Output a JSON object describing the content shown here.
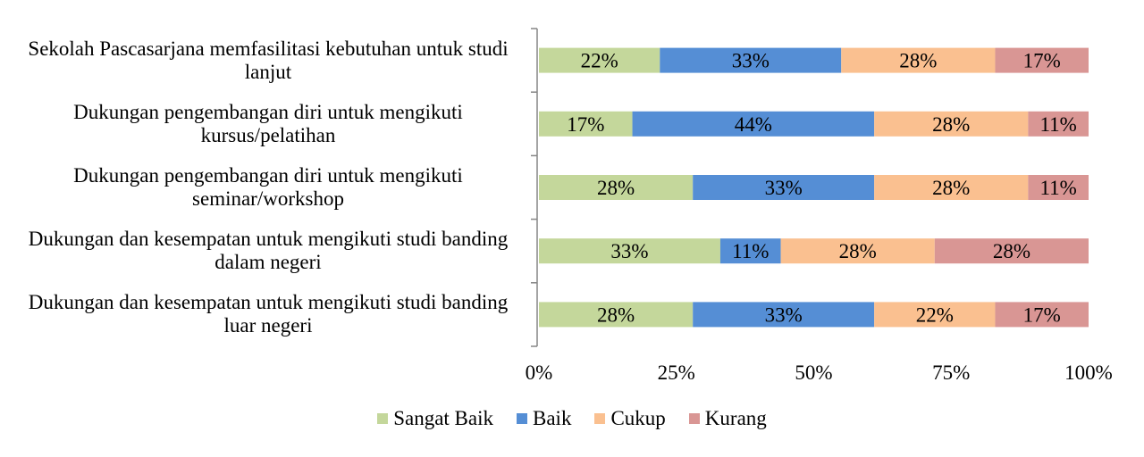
{
  "chart_data": {
    "type": "bar",
    "orientation": "horizontal",
    "stacked": "percent",
    "categories": [
      "Sekolah Pascasarjana memfasilitasi kebutuhan untuk studi lanjut",
      "Dukungan pengembangan diri untuk mengikuti kursus/pelatihan",
      "Dukungan pengembangan diri untuk mengikuti seminar/workshop",
      "Dukungan dan kesempatan untuk mengikuti studi banding dalam negeri",
      "Dukungan dan kesempatan untuk mengikuti studi banding luar negeri"
    ],
    "category_lines": [
      [
        "Sekolah Pascasarjana memfasilitasi kebutuhan untuk studi",
        "lanjut"
      ],
      [
        "Dukungan pengembangan diri untuk mengikuti",
        "kursus/pelatihan"
      ],
      [
        "Dukungan pengembangan diri untuk mengikuti",
        "seminar/workshop"
      ],
      [
        "Dukungan dan kesempatan untuk mengikuti studi banding",
        "dalam negeri"
      ],
      [
        "Dukungan dan kesempatan untuk mengikuti studi banding",
        "luar negeri"
      ]
    ],
    "series": [
      {
        "name": "Sangat Baik",
        "color": "#c4d79b",
        "values": [
          22,
          17,
          28,
          33,
          28
        ],
        "labels": [
          "22%",
          "17%",
          "28%",
          "33%",
          "28%"
        ]
      },
      {
        "name": "Baik",
        "color": "#558ed5",
        "values": [
          33,
          44,
          33,
          11,
          33
        ],
        "labels": [
          "33%",
          "44%",
          "33%",
          "11%",
          "33%"
        ]
      },
      {
        "name": "Cukup",
        "color": "#fac090",
        "values": [
          28,
          28,
          28,
          28,
          22
        ],
        "labels": [
          "28%",
          "28%",
          "28%",
          "28%",
          "22%"
        ]
      },
      {
        "name": "Kurang",
        "color": "#d99694",
        "values": [
          17,
          11,
          11,
          28,
          17
        ],
        "labels": [
          "17%",
          "11%",
          "11%",
          "28%",
          "17%"
        ]
      }
    ],
    "x_ticks": [
      "0%",
      "25%",
      "50%",
      "75%",
      "100%"
    ],
    "xlim": [
      0,
      100
    ],
    "title": "",
    "xlabel": "",
    "ylabel": "",
    "grid": false,
    "legend_position": "bottom"
  }
}
